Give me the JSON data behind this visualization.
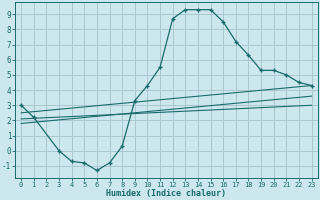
{
  "bg_color": "#cce8ee",
  "grid_color": "#aac8d0",
  "line_color": "#1a6b6b",
  "curve_x": [
    0,
    1,
    3,
    4,
    5,
    6,
    7,
    8,
    9,
    10,
    11,
    12,
    13,
    14,
    15,
    16,
    17,
    18,
    19,
    20,
    21,
    22,
    23
  ],
  "curve_y": [
    3.0,
    2.2,
    0.0,
    -0.7,
    -0.8,
    -1.3,
    -0.8,
    0.3,
    3.3,
    4.3,
    5.5,
    8.7,
    9.3,
    9.3,
    9.3,
    8.5,
    7.2,
    6.3,
    5.3,
    5.3,
    5.0,
    4.5,
    4.3
  ],
  "trend1_x": [
    0,
    23
  ],
  "trend1_y": [
    2.5,
    4.3
  ],
  "trend2_x": [
    0,
    23
  ],
  "trend2_y": [
    1.8,
    3.6
  ],
  "trend3_x": [
    0,
    23
  ],
  "trend3_y": [
    2.1,
    3.0
  ],
  "xlabel": "Humidex (Indice chaleur)",
  "xlim": [
    -0.5,
    23.5
  ],
  "ylim": [
    -1.8,
    9.8
  ],
  "xticks": [
    0,
    1,
    2,
    3,
    4,
    5,
    6,
    7,
    8,
    9,
    10,
    11,
    12,
    13,
    14,
    15,
    16,
    17,
    18,
    19,
    20,
    21,
    22,
    23
  ],
  "yticks": [
    -1,
    0,
    1,
    2,
    3,
    4,
    5,
    6,
    7,
    8,
    9
  ],
  "xlabel_fontsize": 6.0,
  "tick_fontsize_x": 5.0,
  "tick_fontsize_y": 5.5
}
